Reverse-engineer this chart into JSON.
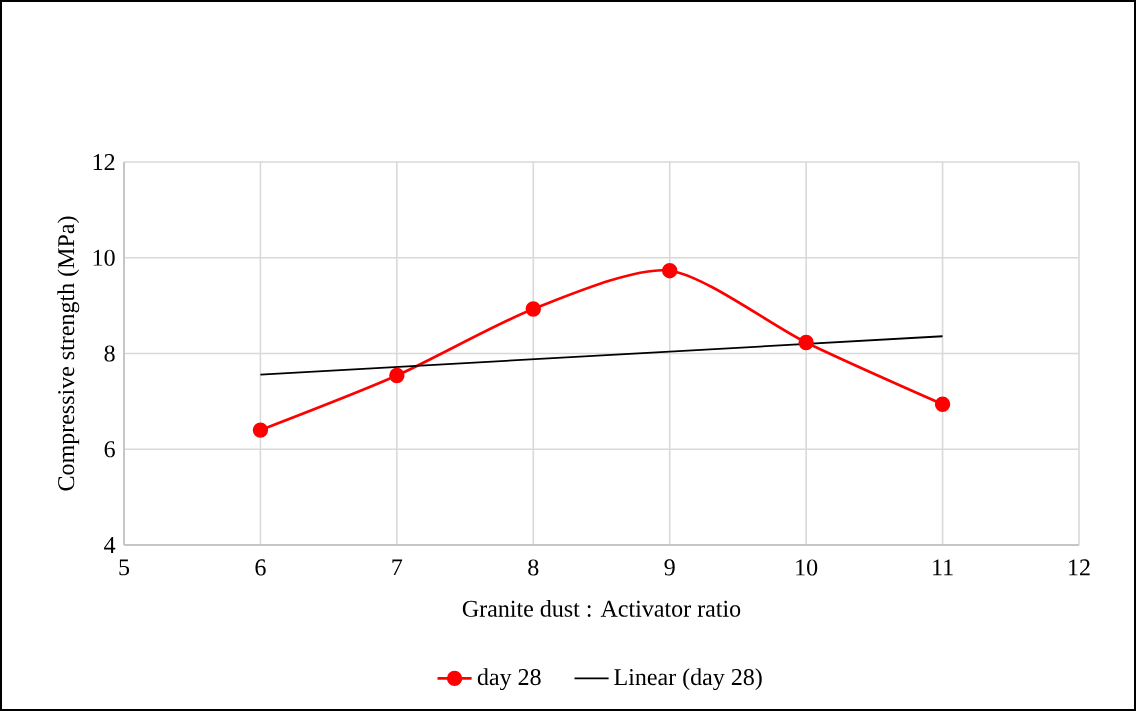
{
  "chart_data": {
    "type": "line",
    "xlabel": "Granite dust : Activator ratio",
    "ylabel": "Compressive strength (MPa)",
    "xlim": [
      5,
      12
    ],
    "xticks": [
      5,
      6,
      7,
      8,
      9,
      10,
      11,
      12
    ],
    "ylim": [
      4,
      12
    ],
    "yticks": [
      4,
      6,
      8,
      10,
      12
    ],
    "grid": true,
    "legend": "bottom",
    "series": [
      {
        "name": "day 28",
        "color": "#ff0000",
        "marker": "circle",
        "x": [
          6,
          7,
          8,
          9,
          10,
          11
        ],
        "values": [
          6.4,
          7.54,
          8.93,
          9.73,
          8.23,
          6.94
        ]
      },
      {
        "name": "Linear (day 28)",
        "color": "#000000",
        "marker": "none",
        "x": [
          6,
          11
        ],
        "values": [
          7.56,
          8.36
        ]
      }
    ]
  }
}
